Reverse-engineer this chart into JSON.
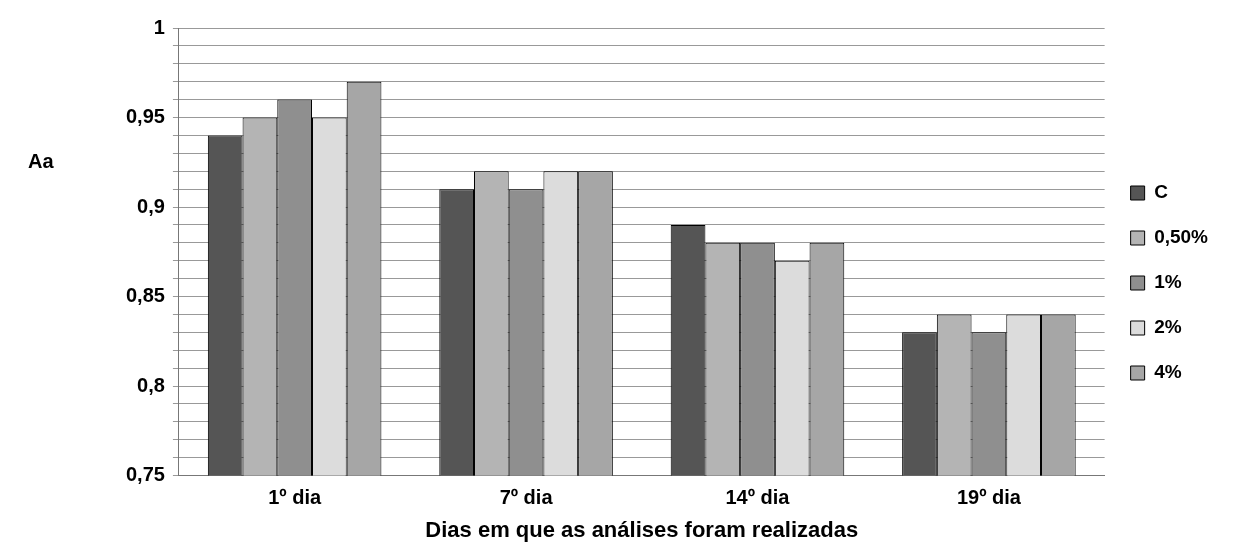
{
  "chart_data": {
    "type": "bar",
    "xlabel": "Dias em que as análises foram realizadas",
    "ylabel": "Aa",
    "categories": [
      "1º dia",
      "7º dia",
      "14º dia",
      "19º dia"
    ],
    "series": [
      {
        "name": "C",
        "color": "#555555",
        "values": [
          0.94,
          0.91,
          0.89,
          0.83
        ]
      },
      {
        "name": "0,50%",
        "color": "#b4b4b4",
        "values": [
          0.95,
          0.92,
          0.88,
          0.84
        ]
      },
      {
        "name": "1%",
        "color": "#8f8f8f",
        "values": [
          0.96,
          0.91,
          0.88,
          0.83
        ]
      },
      {
        "name": "2%",
        "color": "#dcdcdc",
        "values": [
          0.95,
          0.92,
          0.87,
          0.84
        ]
      },
      {
        "name": "4%",
        "color": "#a6a6a6",
        "values": [
          0.97,
          0.92,
          0.88,
          0.84
        ]
      }
    ],
    "ylim": [
      0.75,
      1
    ],
    "yticks": [
      {
        "value": 0.75,
        "label": "0,75"
      },
      {
        "value": 0.76,
        "label": null
      },
      {
        "value": 0.77,
        "label": null
      },
      {
        "value": 0.78,
        "label": null
      },
      {
        "value": 0.79,
        "label": null
      },
      {
        "value": 0.8,
        "label": "0,8"
      },
      {
        "value": 0.81,
        "label": null
      },
      {
        "value": 0.82,
        "label": null
      },
      {
        "value": 0.83,
        "label": null
      },
      {
        "value": 0.84,
        "label": null
      },
      {
        "value": 0.85,
        "label": "0,85"
      },
      {
        "value": 0.86,
        "label": null
      },
      {
        "value": 0.87,
        "label": null
      },
      {
        "value": 0.88,
        "label": null
      },
      {
        "value": 0.89,
        "label": null
      },
      {
        "value": 0.9,
        "label": "0,9"
      },
      {
        "value": 0.91,
        "label": null
      },
      {
        "value": 0.92,
        "label": null
      },
      {
        "value": 0.93,
        "label": null
      },
      {
        "value": 0.94,
        "label": null
      },
      {
        "value": 0.95,
        "label": "0,95"
      },
      {
        "value": 0.96,
        "label": null
      },
      {
        "value": 0.97,
        "label": null
      },
      {
        "value": 0.98,
        "label": null
      },
      {
        "value": 0.99,
        "label": null
      },
      1
    ],
    "grid": "y",
    "legend": "right"
  }
}
